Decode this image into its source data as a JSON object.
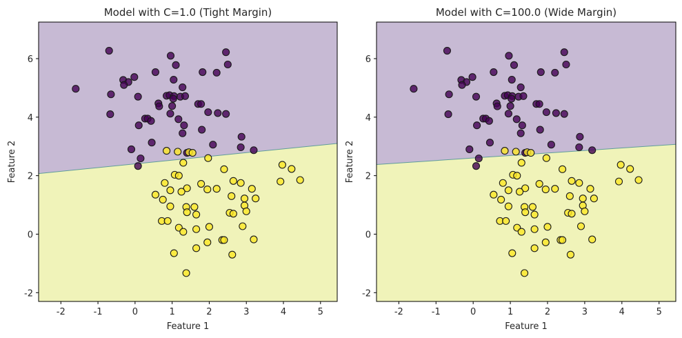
{
  "colors": {
    "region_class0": "#c7bad4",
    "region_class1": "#f0f3b9",
    "point_class0": "#440154",
    "point_class1": "#fde725",
    "boundary_line": "#5f9c9a",
    "point_edge": "#1a1a1a"
  },
  "chart_data": [
    {
      "type": "scatter",
      "title": "Model with C=1.0 (Tight Margin)",
      "xlabel": "Feature 1",
      "ylabel": "Feature 2",
      "xlim": [
        -2.6,
        5.45
      ],
      "ylim": [
        -2.3,
        7.25
      ],
      "xticks": [
        -2,
        -1,
        0,
        1,
        2,
        3,
        4,
        5
      ],
      "yticks": [
        -2,
        0,
        2,
        4,
        6
      ],
      "grid": false,
      "decision_boundary": {
        "x": [
          -2.6,
          5.45
        ],
        "y": [
          2.07,
          3.1
        ]
      },
      "series": [
        {
          "class": 0,
          "points": [
            [
              -0.7,
              6.27
            ],
            [
              0.96,
              6.1
            ],
            [
              2.45,
              6.22
            ],
            [
              2.5,
              5.8
            ],
            [
              1.1,
              5.78
            ],
            [
              -0.02,
              5.37
            ],
            [
              0.55,
              5.54
            ],
            [
              1.82,
              5.54
            ],
            [
              2.2,
              5.52
            ],
            [
              -0.32,
              5.27
            ],
            [
              -0.18,
              5.2
            ],
            [
              -0.3,
              5.1
            ],
            [
              1.04,
              5.28
            ],
            [
              1.28,
              5.02
            ],
            [
              -1.6,
              4.97
            ],
            [
              -0.65,
              4.78
            ],
            [
              0.08,
              4.7
            ],
            [
              0.85,
              4.73
            ],
            [
              0.93,
              4.75
            ],
            [
              1.05,
              4.72
            ],
            [
              1.22,
              4.7
            ],
            [
              1.35,
              4.72
            ],
            [
              1.03,
              4.63
            ],
            [
              0.63,
              4.47
            ],
            [
              0.65,
              4.37
            ],
            [
              1.7,
              4.45
            ],
            [
              1.78,
              4.45
            ],
            [
              1.0,
              4.38
            ],
            [
              1.97,
              4.17
            ],
            [
              2.23,
              4.14
            ],
            [
              2.45,
              4.11
            ],
            [
              -0.67,
              4.1
            ],
            [
              0.95,
              4.12
            ],
            [
              0.27,
              3.95
            ],
            [
              0.34,
              3.95
            ],
            [
              0.43,
              3.87
            ],
            [
              1.17,
              3.93
            ],
            [
              0.1,
              3.72
            ],
            [
              1.32,
              3.72
            ],
            [
              1.28,
              3.45
            ],
            [
              1.8,
              3.57
            ],
            [
              2.87,
              3.33
            ],
            [
              0.45,
              3.13
            ],
            [
              2.1,
              3.06
            ],
            [
              2.85,
              2.97
            ],
            [
              -0.1,
              2.9
            ],
            [
              1.4,
              2.78
            ],
            [
              3.2,
              2.87
            ],
            [
              0.15,
              2.59
            ],
            [
              0.08,
              2.33
            ]
          ]
        },
        {
          "class": 1,
          "points": [
            [
              0.85,
              2.85
            ],
            [
              1.15,
              2.82
            ],
            [
              1.45,
              2.8
            ],
            [
              1.55,
              2.78
            ],
            [
              1.97,
              2.6
            ],
            [
              1.3,
              2.44
            ],
            [
              2.4,
              2.22
            ],
            [
              3.97,
              2.37
            ],
            [
              4.22,
              2.23
            ],
            [
              1.07,
              2.03
            ],
            [
              1.18,
              2.0
            ],
            [
              0.8,
              1.75
            ],
            [
              1.78,
              1.72
            ],
            [
              2.65,
              1.82
            ],
            [
              2.85,
              1.75
            ],
            [
              1.4,
              1.57
            ],
            [
              1.95,
              1.53
            ],
            [
              3.15,
              1.55
            ],
            [
              4.45,
              1.85
            ],
            [
              3.92,
              1.8
            ],
            [
              1.25,
              1.45
            ],
            [
              0.55,
              1.35
            ],
            [
              0.95,
              1.5
            ],
            [
              2.2,
              1.55
            ],
            [
              2.6,
              1.3
            ],
            [
              0.75,
              1.18
            ],
            [
              2.95,
              1.22
            ],
            [
              3.25,
              1.22
            ],
            [
              0.95,
              0.95
            ],
            [
              1.38,
              0.93
            ],
            [
              1.6,
              0.93
            ],
            [
              2.95,
              0.98
            ],
            [
              1.4,
              0.75
            ],
            [
              1.65,
              0.67
            ],
            [
              2.55,
              0.73
            ],
            [
              2.65,
              0.7
            ],
            [
              3.0,
              0.78
            ],
            [
              0.72,
              0.45
            ],
            [
              0.88,
              0.45
            ],
            [
              1.18,
              0.22
            ],
            [
              1.3,
              0.08
            ],
            [
              1.65,
              0.17
            ],
            [
              2.0,
              0.25
            ],
            [
              2.9,
              0.27
            ],
            [
              2.35,
              -0.2
            ],
            [
              2.4,
              -0.2
            ],
            [
              1.95,
              -0.28
            ],
            [
              3.2,
              -0.18
            ],
            [
              1.65,
              -0.48
            ],
            [
              1.05,
              -0.65
            ],
            [
              2.62,
              -0.7
            ],
            [
              1.38,
              -1.33
            ]
          ]
        }
      ]
    },
    {
      "type": "scatter",
      "title": "Model with C=100.0 (Wide Margin)",
      "xlabel": "Feature 1",
      "ylabel": "Feature 2",
      "xlim": [
        -2.6,
        5.45
      ],
      "ylim": [
        -2.3,
        7.25
      ],
      "xticks": [
        -2,
        -1,
        0,
        1,
        2,
        3,
        4,
        5
      ],
      "yticks": [
        -2,
        0,
        2,
        4,
        6
      ],
      "grid": false,
      "decision_boundary": {
        "x": [
          -2.6,
          5.45
        ],
        "y": [
          2.38,
          3.07
        ]
      },
      "series": [
        {
          "class": 0,
          "points": [
            [
              -0.7,
              6.27
            ],
            [
              0.96,
              6.1
            ],
            [
              2.45,
              6.22
            ],
            [
              2.5,
              5.8
            ],
            [
              1.1,
              5.78
            ],
            [
              -0.02,
              5.37
            ],
            [
              0.55,
              5.54
            ],
            [
              1.82,
              5.54
            ],
            [
              2.2,
              5.52
            ],
            [
              -0.32,
              5.27
            ],
            [
              -0.18,
              5.2
            ],
            [
              -0.3,
              5.1
            ],
            [
              1.04,
              5.28
            ],
            [
              1.28,
              5.02
            ],
            [
              -1.6,
              4.97
            ],
            [
              -0.65,
              4.78
            ],
            [
              0.08,
              4.7
            ],
            [
              0.85,
              4.73
            ],
            [
              0.93,
              4.75
            ],
            [
              1.05,
              4.72
            ],
            [
              1.22,
              4.7
            ],
            [
              1.35,
              4.72
            ],
            [
              1.03,
              4.63
            ],
            [
              0.63,
              4.47
            ],
            [
              0.65,
              4.37
            ],
            [
              1.7,
              4.45
            ],
            [
              1.78,
              4.45
            ],
            [
              1.0,
              4.38
            ],
            [
              1.97,
              4.17
            ],
            [
              2.23,
              4.14
            ],
            [
              2.45,
              4.11
            ],
            [
              -0.67,
              4.1
            ],
            [
              0.95,
              4.12
            ],
            [
              0.27,
              3.95
            ],
            [
              0.34,
              3.95
            ],
            [
              0.43,
              3.87
            ],
            [
              1.17,
              3.93
            ],
            [
              0.1,
              3.72
            ],
            [
              1.32,
              3.72
            ],
            [
              1.28,
              3.45
            ],
            [
              1.8,
              3.57
            ],
            [
              2.87,
              3.33
            ],
            [
              0.45,
              3.13
            ],
            [
              2.1,
              3.06
            ],
            [
              2.85,
              2.97
            ],
            [
              -0.1,
              2.9
            ],
            [
              1.4,
              2.78
            ],
            [
              3.2,
              2.87
            ],
            [
              0.15,
              2.59
            ],
            [
              0.08,
              2.33
            ]
          ]
        },
        {
          "class": 1,
          "points": [
            [
              0.85,
              2.85
            ],
            [
              1.15,
              2.82
            ],
            [
              1.45,
              2.8
            ],
            [
              1.55,
              2.78
            ],
            [
              1.97,
              2.6
            ],
            [
              1.3,
              2.44
            ],
            [
              2.4,
              2.22
            ],
            [
              3.97,
              2.37
            ],
            [
              4.22,
              2.23
            ],
            [
              1.07,
              2.03
            ],
            [
              1.18,
              2.0
            ],
            [
              0.8,
              1.75
            ],
            [
              1.78,
              1.72
            ],
            [
              2.65,
              1.82
            ],
            [
              2.85,
              1.75
            ],
            [
              1.4,
              1.57
            ],
            [
              1.95,
              1.53
            ],
            [
              3.15,
              1.55
            ],
            [
              4.45,
              1.85
            ],
            [
              3.92,
              1.8
            ],
            [
              1.25,
              1.45
            ],
            [
              0.55,
              1.35
            ],
            [
              0.95,
              1.5
            ],
            [
              2.2,
              1.55
            ],
            [
              2.6,
              1.3
            ],
            [
              0.75,
              1.18
            ],
            [
              2.95,
              1.22
            ],
            [
              3.25,
              1.22
            ],
            [
              0.95,
              0.95
            ],
            [
              1.38,
              0.93
            ],
            [
              1.6,
              0.93
            ],
            [
              2.95,
              0.98
            ],
            [
              1.4,
              0.75
            ],
            [
              1.65,
              0.67
            ],
            [
              2.55,
              0.73
            ],
            [
              2.65,
              0.7
            ],
            [
              3.0,
              0.78
            ],
            [
              0.72,
              0.45
            ],
            [
              0.88,
              0.45
            ],
            [
              1.18,
              0.22
            ],
            [
              1.3,
              0.08
            ],
            [
              1.65,
              0.17
            ],
            [
              2.0,
              0.25
            ],
            [
              2.9,
              0.27
            ],
            [
              2.35,
              -0.2
            ],
            [
              2.4,
              -0.2
            ],
            [
              1.95,
              -0.28
            ],
            [
              3.2,
              -0.18
            ],
            [
              1.65,
              -0.48
            ],
            [
              1.05,
              -0.65
            ],
            [
              2.62,
              -0.7
            ],
            [
              1.38,
              -1.33
            ]
          ]
        }
      ]
    }
  ]
}
